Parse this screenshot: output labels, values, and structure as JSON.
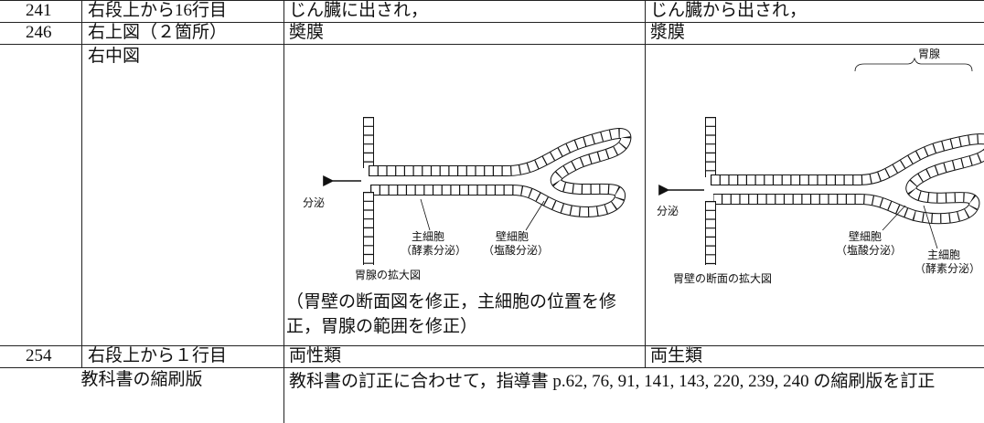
{
  "table": {
    "rows": [
      {
        "page": "241",
        "location": "右段上から16行目",
        "before": "じん臓に出され，",
        "after": "じん臓から出され，"
      },
      {
        "page": "246",
        "location": "右上図（２箇所）",
        "before": "奬膜",
        "after": "漿膜"
      },
      {
        "location": "右中図",
        "before": {
          "figure": {
            "secretion": "分泌",
            "chief_cell": "主細胞",
            "chief_cell_note": "（酵素分泌）",
            "parietal_cell": "壁細胞",
            "parietal_cell_note": "（塩酸分泌）",
            "caption": "胃腺の拡大図"
          },
          "note": "（胃壁の断面図を修正，主細胞の位置を修正，胃腺の範囲を修正）"
        },
        "after": {
          "figure": {
            "gland": "胃腺",
            "secretion": "分泌",
            "parietal_cell": "壁細胞",
            "parietal_cell_note": "（塩酸分泌）",
            "chief_cell": "主細胞",
            "chief_cell_note": "（酵素分泌）",
            "caption": "胃壁の断面の拡大図"
          }
        }
      },
      {
        "page": "254",
        "location": "右段上から１行目",
        "before": "両性類",
        "after": "両生類"
      }
    ],
    "footer_row": {
      "label": "教科書の縮刷版",
      "text": "教科書の訂正に合わせて，指導書 p.62, 76, 91, 141, 143, 220, 239, 240 の縮刷版を訂正"
    }
  }
}
